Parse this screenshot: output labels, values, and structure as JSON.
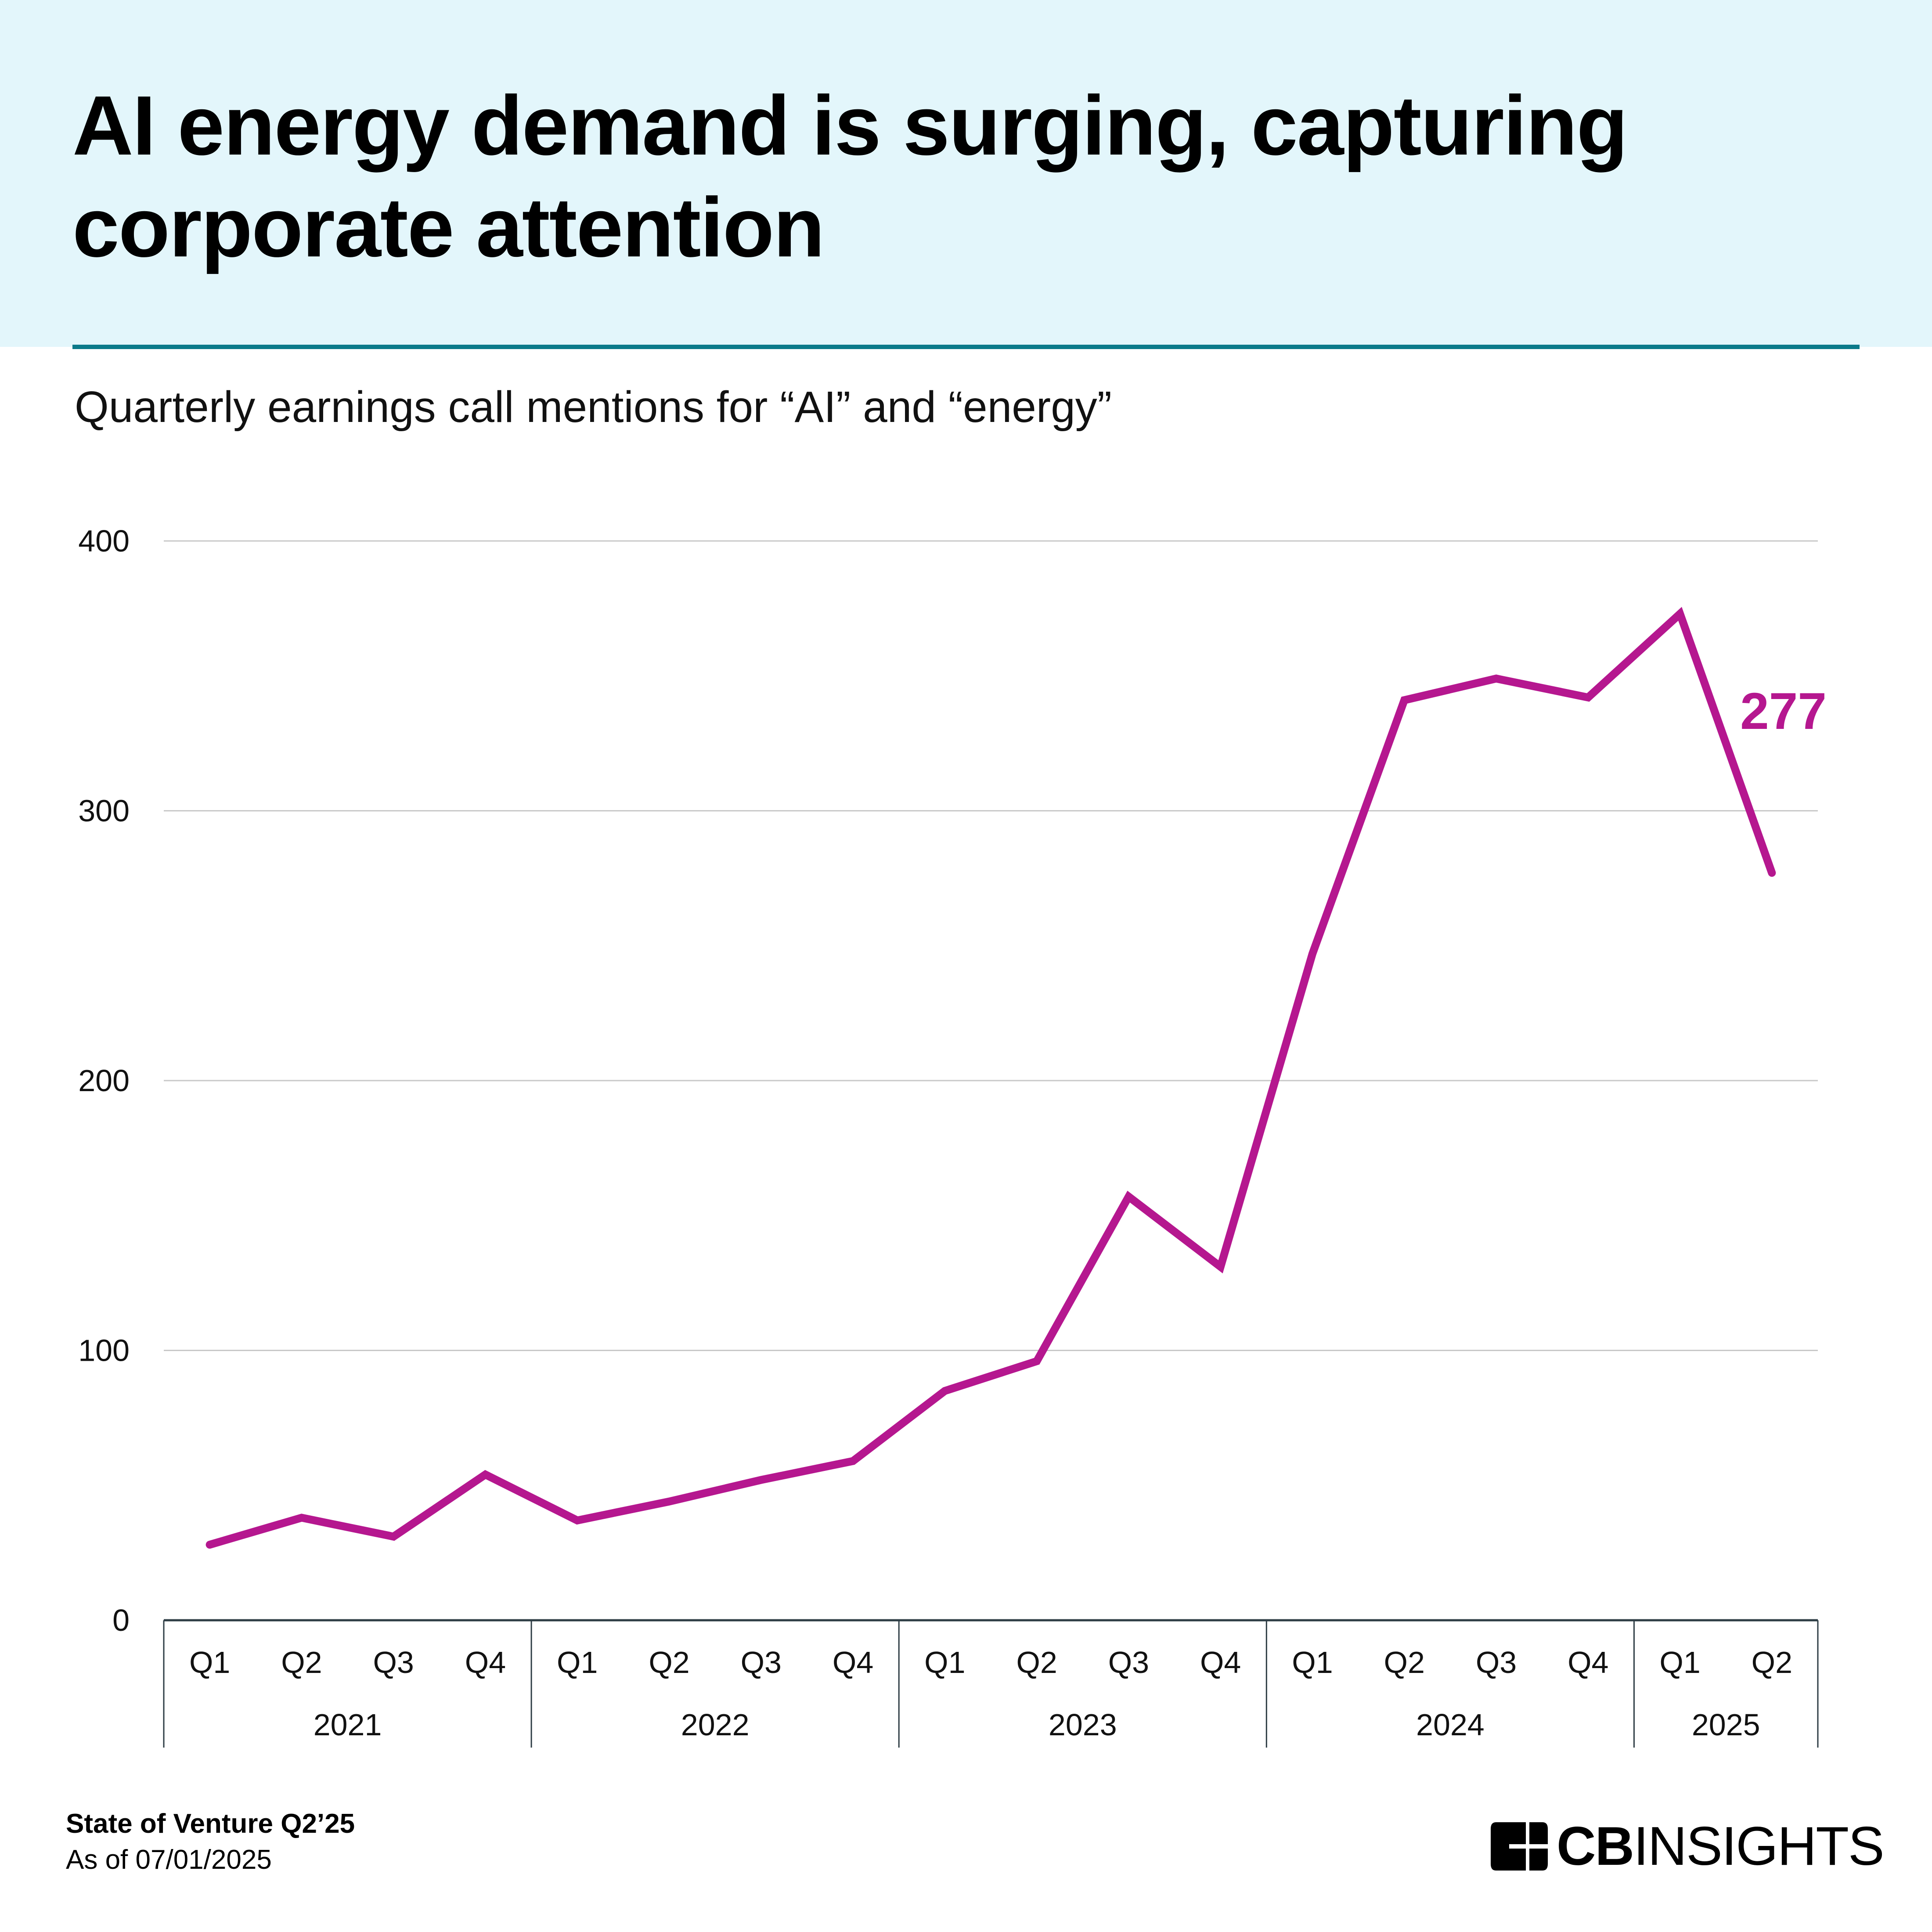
{
  "header": {
    "title": "AI energy demand is surging, capturing corporate attention",
    "subtitle": "Quarterly earnings call mentions for “AI” and “energy”"
  },
  "footer": {
    "report": "State of Venture Q2’25",
    "as_of": "As of 07/01/2025",
    "logo_bold": "CB",
    "logo_light": "INSIGHTS"
  },
  "colors": {
    "line": "#b5178f",
    "header_bg": "#e3f6fb",
    "rule": "#0b7a8a",
    "grid": "#c8c8c8",
    "axis": "#2e3d45"
  },
  "chart_data": {
    "type": "line",
    "title": "Quarterly earnings call mentions for “AI” and “energy”",
    "xlabel": "",
    "ylabel": "",
    "ylim": [
      0,
      400
    ],
    "yticks": [
      0,
      100,
      200,
      300,
      400
    ],
    "grid": true,
    "legend": "none",
    "categories": [
      "Q1",
      "Q2",
      "Q3",
      "Q4",
      "Q1",
      "Q2",
      "Q3",
      "Q4",
      "Q1",
      "Q2",
      "Q3",
      "Q4",
      "Q1",
      "Q2",
      "Q3",
      "Q4",
      "Q1",
      "Q2"
    ],
    "year_groups": [
      {
        "label": "2021",
        "count": 4
      },
      {
        "label": "2022",
        "count": 4
      },
      {
        "label": "2023",
        "count": 4
      },
      {
        "label": "2024",
        "count": 4
      },
      {
        "label": "2025",
        "count": 2
      }
    ],
    "series": [
      {
        "name": "Mentions",
        "values": [
          28,
          38,
          31,
          54,
          37,
          44,
          52,
          59,
          85,
          96,
          157,
          131,
          247,
          341,
          349,
          342,
          373,
          277
        ]
      }
    ],
    "annotations": [
      {
        "index": 17,
        "text": "277"
      }
    ]
  }
}
